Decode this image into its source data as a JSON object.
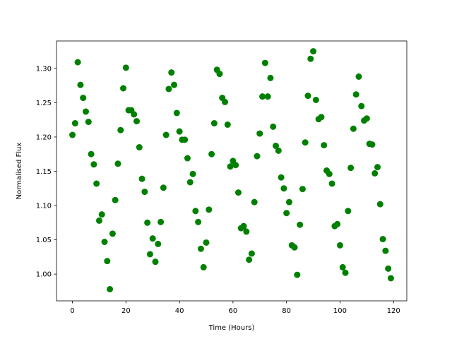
{
  "chart_data": {
    "type": "scatter",
    "x_label": "Time (Hours)",
    "y_label": "Normalised Flux",
    "color": "#008000",
    "x": [
      0,
      1,
      2,
      3,
      4,
      5,
      6,
      7,
      8,
      9,
      10,
      11,
      12,
      13,
      14,
      15,
      16,
      17,
      18,
      19,
      20,
      21,
      22,
      23,
      24,
      25,
      26,
      27,
      28,
      29,
      30,
      31,
      32,
      33,
      34,
      35,
      36,
      37,
      38,
      39,
      40,
      41,
      42,
      43,
      44,
      45,
      46,
      47,
      48,
      49,
      50,
      51,
      52,
      53,
      54,
      55,
      56,
      57,
      58,
      59,
      60,
      61,
      62,
      63,
      64,
      65,
      66,
      67,
      68,
      69,
      70,
      71,
      72,
      73,
      74,
      75,
      76,
      77,
      78,
      79,
      80,
      81,
      82,
      83,
      84,
      85,
      86,
      87,
      88,
      89,
      90,
      91,
      92,
      93,
      94,
      95,
      96,
      97,
      98,
      99,
      100,
      101,
      102,
      103,
      104,
      105,
      106,
      107,
      108,
      109,
      110,
      111,
      112,
      113,
      114,
      115,
      116,
      117,
      118,
      119
    ],
    "values": [
      1.203,
      1.22,
      1.309,
      1.276,
      1.257,
      1.237,
      1.222,
      1.175,
      1.16,
      1.132,
      1.078,
      1.087,
      1.047,
      1.019,
      0.978,
      1.059,
      1.108,
      1.161,
      1.21,
      1.271,
      1.301,
      1.239,
      1.239,
      1.233,
      1.223,
      1.185,
      1.139,
      1.12,
      1.075,
      1.029,
      1.052,
      1.018,
      1.044,
      1.076,
      1.126,
      1.203,
      1.27,
      1.294,
      1.276,
      1.235,
      1.208,
      1.196,
      1.196,
      1.169,
      1.134,
      1.146,
      1.092,
      1.076,
      1.037,
      1.01,
      1.046,
      1.094,
      1.175,
      1.22,
      1.298,
      1.292,
      1.257,
      1.251,
      1.218,
      1.157,
      1.165,
      1.159,
      1.119,
      1.067,
      1.07,
      1.062,
      1.021,
      1.03,
      1.105,
      1.172,
      1.205,
      1.259,
      1.308,
      1.259,
      1.286,
      1.215,
      1.187,
      1.18,
      1.141,
      1.125,
      1.089,
      1.105,
      1.042,
      1.039,
      0.999,
      1.072,
      1.124,
      1.192,
      1.26,
      1.314,
      1.325,
      1.254,
      1.226,
      1.229,
      1.188,
      1.151,
      1.146,
      1.132,
      1.07,
      1.073,
      1.042,
      1.01,
      1.002,
      1.092,
      1.155,
      1.212,
      1.262,
      1.288,
      1.245,
      1.224,
      1.227,
      1.19,
      1.189,
      1.147,
      1.156,
      1.102,
      1.051,
      1.034,
      1.008,
      0.994
    ],
    "xlim": [
      -5.95,
      124.95
    ],
    "ylim": [
      0.961,
      1.34
    ],
    "xticks": [
      0,
      20,
      40,
      60,
      80,
      100,
      120
    ],
    "yticks": [
      {
        "value": 1,
        "label": "1.00"
      },
      {
        "value": 1.05,
        "label": "1.05"
      },
      {
        "value": 1.1,
        "label": "1.10"
      },
      {
        "value": 1.15,
        "label": "1.15"
      },
      {
        "value": 1.2,
        "label": "1.20"
      },
      {
        "value": 1.25,
        "label": "1.25"
      },
      {
        "value": 1.3,
        "label": "1.30"
      }
    ]
  }
}
